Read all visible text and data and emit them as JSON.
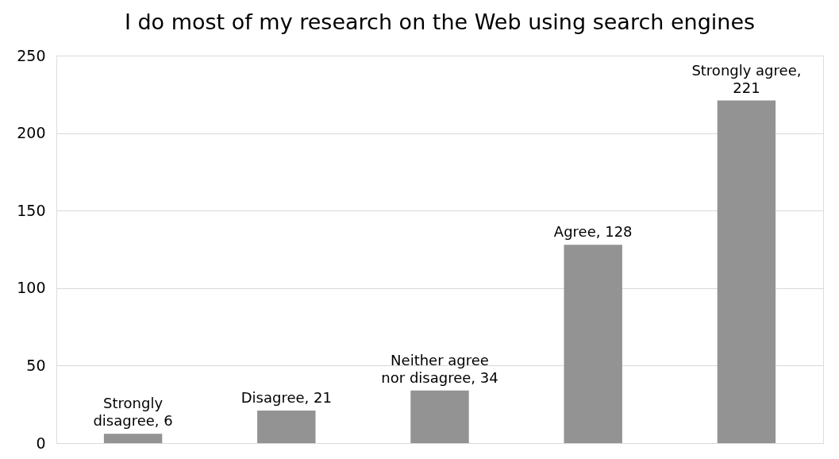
{
  "chart_data": {
    "type": "bar",
    "title": "I do most of my research on the Web using search engines",
    "categories": [
      null,
      null,
      null,
      null,
      null
    ],
    "values": [
      6,
      21,
      34,
      128,
      221
    ],
    "color": "#939393",
    "value_labels": [
      "Strongly disagree, 6",
      "Disagree, 21",
      "Neither agree nor disagree, 34",
      "Agree, 128",
      "Strongly agree, 221"
    ],
    "ylim": [
      0,
      250
    ],
    "yticks": [
      0,
      50,
      100,
      150,
      200,
      250
    ],
    "grid": "y"
  }
}
